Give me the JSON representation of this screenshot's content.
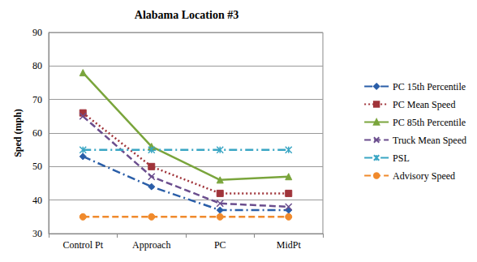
{
  "chart_data": {
    "type": "line",
    "title": "Alabama Location #3",
    "y_label": "Sped (mph)",
    "categories": [
      "Control Pt",
      "Approach",
      "PC",
      "MidPt"
    ],
    "series": [
      {
        "name": "PC 15th Percentile",
        "color": "#2a5ea8",
        "marker": "diamond",
        "line_style": "dashdot",
        "values": [
          53,
          44,
          37,
          37
        ]
      },
      {
        "name": "PC Mean Speed",
        "color": "#a0343a",
        "marker": "square",
        "line_style": "dotted",
        "values": [
          66,
          50,
          42,
          42
        ]
      },
      {
        "name": "PC 85th Percentile",
        "color": "#7aa53c",
        "marker": "triangle",
        "line_style": "solid",
        "values": [
          78,
          56,
          46,
          47
        ]
      },
      {
        "name": "Truck Mean Speed",
        "color": "#6b4e8e",
        "marker": "x",
        "line_style": "dashed",
        "values": [
          65,
          47,
          39,
          38
        ]
      },
      {
        "name": "PSL",
        "color": "#3aa6c4",
        "marker": "asterisk",
        "line_style": "dashdot",
        "values": [
          55,
          55,
          55,
          55
        ]
      },
      {
        "name": "Advisory Speed",
        "color": "#f08a2c",
        "marker": "circle",
        "line_style": "dashed",
        "values": [
          35,
          35,
          35,
          35
        ]
      }
    ],
    "ylim": [
      30,
      90
    ],
    "yticks": [
      30,
      40,
      50,
      60,
      70,
      80,
      90
    ],
    "grid": true,
    "legend": "right"
  }
}
